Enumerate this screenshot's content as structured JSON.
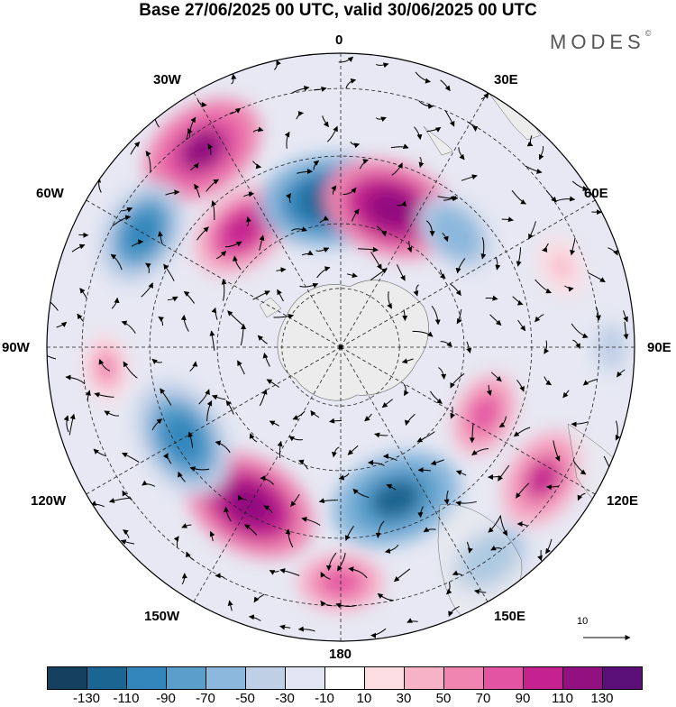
{
  "title": "Base 27/06/2025 00 UTC, valid 30/06/2025 00 UTC",
  "brand": "MODES",
  "brand_mark": "©",
  "longitude_labels": {
    "top": "0",
    "top_right": "30E",
    "right_upper": "60E",
    "right": "90E",
    "right_lower": "120E",
    "bottom_right": "150E",
    "bottom": "180",
    "bottom_left": "150W",
    "left_lower": "120W",
    "left": "90W",
    "left_upper": "60W",
    "top_left": "30W"
  },
  "reference_vector": {
    "label": "10"
  },
  "colorbar": {
    "colors": [
      "#15405f",
      "#1a6592",
      "#3286bb",
      "#5a9fcc",
      "#8bb8dc",
      "#bfcfe6",
      "#e3e6f2",
      "#ffffff",
      "#fbdde3",
      "#f6b3c8",
      "#ef85b0",
      "#e354a3",
      "#c5228f",
      "#931080",
      "#5b0f78"
    ],
    "tick_labels": [
      "-130",
      "-110",
      "-90",
      "-70",
      "-50",
      "-30",
      "-10",
      "10",
      "30",
      "50",
      "70",
      "90",
      "110",
      "130"
    ]
  },
  "map": {
    "projection": "south-polar-stereographic",
    "land_color": "#ececec",
    "anomaly_centers": [
      {
        "lon": -35,
        "value": 115
      },
      {
        "lon": -60,
        "value": -95
      },
      {
        "lon": -40,
        "value": 95
      },
      {
        "lon": -5,
        "value": -125
      },
      {
        "lon": 20,
        "value": 125
      },
      {
        "lon": 45,
        "value": -70
      },
      {
        "lon": 70,
        "value": 30
      },
      {
        "lon": 90,
        "value": -50
      },
      {
        "lon": 115,
        "value": 70
      },
      {
        "lon": 123,
        "value": 90
      },
      {
        "lon": 145,
        "value": -70
      },
      {
        "lon": 180,
        "value": 70
      },
      {
        "lon": 160,
        "value": -120
      },
      {
        "lon": -150,
        "value": 125
      },
      {
        "lon": -120,
        "value": -110
      },
      {
        "lon": -95,
        "value": 50
      }
    ]
  }
}
